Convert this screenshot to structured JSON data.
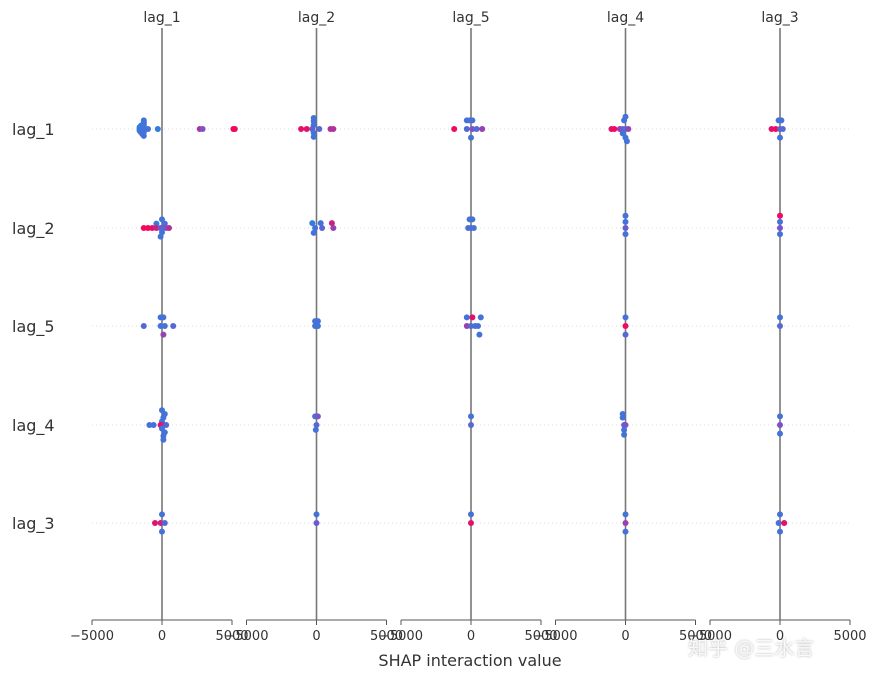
{
  "chart_data": {
    "type": "scatter",
    "xlabel": "SHAP interaction value",
    "columns": [
      "lag_1",
      "lag_2",
      "lag_5",
      "lag_4",
      "lag_3"
    ],
    "rows": [
      "lag_1",
      "lag_2",
      "lag_5",
      "lag_4",
      "lag_3"
    ],
    "xlim": [
      -5000,
      5000
    ],
    "xticks": [
      -5000,
      0,
      5000
    ],
    "xtick_labels": [
      "−5000",
      "0",
      "5000"
    ],
    "grid": "horizontal dotted",
    "colors": {
      "low": "#1e88e5",
      "mid": "#7c52c8",
      "high": "#ff0052",
      "axis": "#777777"
    },
    "panels": [
      [
        [
          [
            -1300,
            -3.5,
            0.2
          ],
          [
            -1300,
            -2.8,
            0.2
          ],
          [
            -1300,
            -2.1,
            0.2
          ],
          [
            -1500,
            -1.4,
            0.1
          ],
          [
            -1300,
            -1.4,
            0.2
          ],
          [
            -1600,
            -0.7,
            0.1
          ],
          [
            -1400,
            -0.7,
            0.2
          ],
          [
            -1600,
            0,
            0.1
          ],
          [
            -1400,
            0,
            0.2
          ],
          [
            -1200,
            0,
            0.1
          ],
          [
            -1000,
            0,
            0.2
          ],
          [
            -300,
            0,
            0.1
          ],
          [
            2700,
            0,
            0.7
          ],
          [
            2900,
            0,
            0.5
          ],
          [
            5100,
            0,
            0.95
          ],
          [
            5200,
            0,
            0.95
          ],
          [
            -1600,
            0.7,
            0.1
          ],
          [
            -1400,
            0.7,
            0.2
          ],
          [
            -1500,
            1.4,
            0.2
          ],
          [
            -1300,
            1.4,
            0.2
          ],
          [
            -1400,
            2.1,
            0.2
          ],
          [
            -1300,
            2.8,
            0.2
          ]
        ],
        [
          [
            0,
            -3.5,
            0.2
          ],
          [
            -400,
            -1.8,
            0.1
          ],
          [
            200,
            -1.8,
            0.2
          ],
          [
            -1300,
            0,
            0.95
          ],
          [
            -1000,
            0,
            0.95
          ],
          [
            -700,
            0,
            0.9
          ],
          [
            -400,
            0,
            0.8
          ],
          [
            -100,
            0,
            0.5
          ],
          [
            100,
            0,
            0.3
          ],
          [
            300,
            0,
            0.5
          ],
          [
            500,
            0,
            0.7
          ],
          [
            0,
            1.8,
            0.2
          ],
          [
            -100,
            3.5,
            0.2
          ]
        ],
        [
          [
            -100,
            -3.5,
            0.2
          ],
          [
            100,
            -3.5,
            0.2
          ],
          [
            -1300,
            0,
            0.3
          ],
          [
            -100,
            0,
            0.2
          ],
          [
            200,
            0,
            0.2
          ],
          [
            800,
            0,
            0.3
          ],
          [
            100,
            3.5,
            0.6
          ]
        ],
        [
          [
            0,
            -6,
            0.2
          ],
          [
            200,
            -4.5,
            0.2
          ],
          [
            100,
            -3,
            0.2
          ],
          [
            0,
            -1.5,
            0.2
          ],
          [
            -900,
            0,
            0.2
          ],
          [
            -600,
            0,
            0.2
          ],
          [
            -100,
            0,
            0.9
          ],
          [
            100,
            0,
            0.8
          ],
          [
            300,
            0,
            0.3
          ],
          [
            0,
            1.5,
            0.2
          ],
          [
            200,
            3,
            0.2
          ],
          [
            100,
            4.5,
            0.2
          ],
          [
            100,
            6,
            0.2
          ]
        ],
        [
          [
            0,
            -3.5,
            0.2
          ],
          [
            -500,
            0,
            0.9
          ],
          [
            -100,
            0,
            0.8
          ],
          [
            200,
            0,
            0.3
          ],
          [
            0,
            3.5,
            0.2
          ]
        ]
      ],
      [
        [
          [
            -200,
            -4.5,
            0.2
          ],
          [
            -200,
            -3.2,
            0.2
          ],
          [
            -200,
            -1.6,
            0.2
          ],
          [
            -1100,
            0,
            0.9
          ],
          [
            -700,
            0,
            0.9
          ],
          [
            -300,
            0,
            0.4
          ],
          [
            200,
            0,
            0.3
          ],
          [
            1000,
            0,
            0.7
          ],
          [
            1200,
            0,
            0.7
          ],
          [
            -200,
            1.6,
            0.2
          ],
          [
            -200,
            3.2,
            0.2
          ]
        ],
        [
          [
            -300,
            -2,
            0.1
          ],
          [
            300,
            -2,
            0.2
          ],
          [
            1100,
            -2,
            0.8
          ],
          [
            -100,
            0,
            0.2
          ],
          [
            400,
            0,
            0.3
          ],
          [
            1200,
            0,
            0.6
          ],
          [
            -200,
            2,
            0.2
          ]
        ],
        [
          [
            -100,
            -2,
            0.2
          ],
          [
            100,
            -2,
            0.2
          ],
          [
            -100,
            0,
            0.2
          ],
          [
            100,
            0,
            0.2
          ]
        ],
        [
          [
            -100,
            -3.5,
            0.2
          ],
          [
            100,
            -3.5,
            0.5
          ],
          [
            0,
            0,
            0.3
          ],
          [
            -50,
            2,
            0.2
          ]
        ],
        [
          [
            0,
            -3.5,
            0.2
          ],
          [
            0,
            0,
            0.4
          ]
        ]
      ],
      [
        [
          [
            -300,
            -3.5,
            0.2
          ],
          [
            -100,
            -3.5,
            0.2
          ],
          [
            100,
            -3.5,
            0.2
          ],
          [
            -1200,
            0,
            0.95
          ],
          [
            -300,
            0,
            0.3
          ],
          [
            100,
            0,
            0.5
          ],
          [
            400,
            0,
            0.3
          ],
          [
            800,
            0,
            0.6
          ],
          [
            0,
            3.5,
            0.2
          ]
        ],
        [
          [
            -100,
            -3.5,
            0.2
          ],
          [
            100,
            -3.5,
            0.2
          ],
          [
            -200,
            0,
            0.2
          ],
          [
            0,
            0,
            0.3
          ],
          [
            200,
            0,
            0.2
          ]
        ],
        [
          [
            -300,
            -3.5,
            0.2
          ],
          [
            100,
            -3.5,
            0.9
          ],
          [
            700,
            -3.5,
            0.2
          ],
          [
            -300,
            0,
            0.6
          ],
          [
            0,
            0,
            0.3
          ],
          [
            300,
            0,
            0.2
          ],
          [
            500,
            0,
            0.2
          ],
          [
            600,
            3.5,
            0.2
          ]
        ],
        [
          [
            0,
            -3.5,
            0.2
          ],
          [
            0,
            0,
            0.3
          ]
        ],
        [
          [
            0,
            -3.5,
            0.2
          ],
          [
            0,
            0,
            0.9
          ]
        ]
      ],
      [
        [
          [
            0,
            -5,
            0.2
          ],
          [
            -100,
            -3.5,
            0.2
          ],
          [
            -1000,
            0,
            0.9
          ],
          [
            -800,
            0,
            0.95
          ],
          [
            -400,
            0,
            0.7
          ],
          [
            -200,
            0,
            0.4
          ],
          [
            0,
            0,
            0.2
          ],
          [
            200,
            0,
            0.6
          ],
          [
            -200,
            1.8,
            0.2
          ],
          [
            0,
            3.5,
            0.2
          ],
          [
            100,
            5,
            0.2
          ]
        ],
        [
          [
            0,
            -5,
            0.2
          ],
          [
            0,
            -2.5,
            0.2
          ],
          [
            0,
            0,
            0.4
          ],
          [
            0,
            2.5,
            0.2
          ]
        ],
        [
          [
            0,
            -3.5,
            0.2
          ],
          [
            0,
            0,
            0.95
          ],
          [
            0,
            3.5,
            0.3
          ]
        ],
        [
          [
            -200,
            -4.5,
            0.2
          ],
          [
            -200,
            -3,
            0.2
          ],
          [
            -100,
            0,
            0.4
          ],
          [
            0,
            0,
            0.5
          ],
          [
            -100,
            2,
            0.2
          ],
          [
            -100,
            4,
            0.2
          ]
        ],
        [
          [
            0,
            -3.5,
            0.2
          ],
          [
            0,
            0,
            0.6
          ],
          [
            0,
            3.5,
            0.2
          ]
        ]
      ],
      [
        [
          [
            -100,
            -3.5,
            0.2
          ],
          [
            100,
            -3.5,
            0.2
          ],
          [
            -600,
            0,
            0.9
          ],
          [
            -300,
            0,
            0.95
          ],
          [
            0,
            0,
            0.3
          ],
          [
            200,
            0,
            0.3
          ],
          [
            0,
            3.5,
            0.2
          ]
        ],
        [
          [
            0,
            -5,
            0.95
          ],
          [
            0,
            -2.5,
            0.2
          ],
          [
            0,
            0,
            0.5
          ],
          [
            0,
            2.5,
            0.2
          ]
        ],
        [
          [
            0,
            -3.5,
            0.2
          ],
          [
            0,
            0,
            0.3
          ]
        ],
        [
          [
            0,
            -3.5,
            0.2
          ],
          [
            0,
            0,
            0.5
          ],
          [
            0,
            3.5,
            0.2
          ]
        ],
        [
          [
            0,
            -3.5,
            0.2
          ],
          [
            -100,
            0,
            0.2
          ],
          [
            300,
            0,
            0.9
          ],
          [
            0,
            3.5,
            0.2
          ]
        ]
      ]
    ]
  },
  "watermark": "知乎 @三水言"
}
